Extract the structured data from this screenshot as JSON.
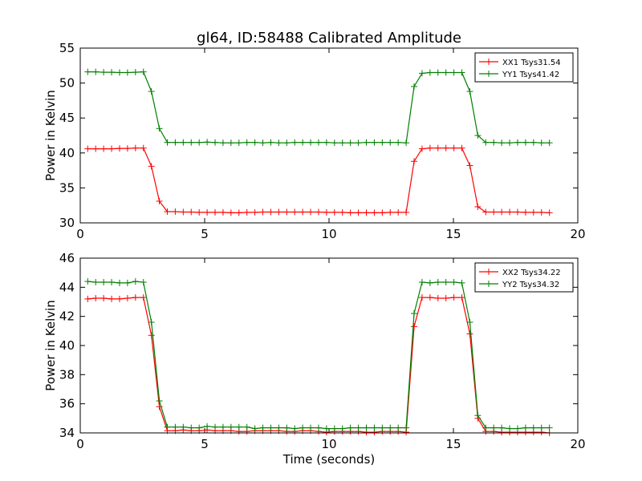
{
  "figure": {
    "title": "gl64, ID:58488 Calibrated Amplitude",
    "xlabel": "Time (seconds)",
    "ylabel": "Power in Kelvin"
  },
  "chart_data": [
    {
      "type": "line",
      "title": "gl64, ID:58488 Calibrated Amplitude",
      "xlabel": "",
      "ylabel": "Power in Kelvin",
      "xlim": [
        0,
        20
      ],
      "ylim": [
        30,
        55
      ],
      "xticks": [
        "0",
        "5",
        "10",
        "15",
        "20"
      ],
      "yticks": [
        "30",
        "35",
        "40",
        "45",
        "50",
        "55"
      ],
      "grid": false,
      "legend": "top-right",
      "x": [
        0.3,
        0.62,
        0.94,
        1.26,
        1.58,
        1.9,
        2.22,
        2.54,
        2.86,
        3.18,
        3.5,
        3.82,
        4.14,
        4.46,
        4.78,
        5.1,
        5.42,
        5.74,
        6.06,
        6.38,
        6.7,
        7.02,
        7.34,
        7.66,
        7.98,
        8.3,
        8.62,
        8.94,
        9.26,
        9.58,
        9.9,
        10.22,
        10.54,
        10.86,
        11.18,
        11.5,
        11.82,
        12.14,
        12.46,
        12.78,
        13.1,
        13.42,
        13.74,
        14.06,
        14.38,
        14.7,
        15.02,
        15.34,
        15.66,
        15.98,
        16.3,
        16.62,
        16.94,
        17.26,
        17.58,
        17.9,
        18.22,
        18.54,
        18.86
      ],
      "series": [
        {
          "name": "XX1 Tsys31.54",
          "color": "#ff0000",
          "values": [
            40.6,
            40.6,
            40.6,
            40.6,
            40.65,
            40.65,
            40.7,
            40.7,
            38.1,
            33.1,
            31.6,
            31.6,
            31.55,
            31.55,
            31.5,
            31.5,
            31.5,
            31.5,
            31.45,
            31.45,
            31.5,
            31.5,
            31.55,
            31.55,
            31.55,
            31.55,
            31.55,
            31.55,
            31.55,
            31.55,
            31.5,
            31.5,
            31.5,
            31.45,
            31.45,
            31.45,
            31.45,
            31.45,
            31.5,
            31.5,
            31.5,
            38.8,
            40.6,
            40.7,
            40.7,
            40.7,
            40.7,
            40.7,
            38.2,
            32.3,
            31.55,
            31.55,
            31.55,
            31.55,
            31.55,
            31.5,
            31.5,
            31.5,
            31.45
          ]
        },
        {
          "name": "YY1 Tsys41.42",
          "color": "#008000",
          "values": [
            51.6,
            51.6,
            51.55,
            51.55,
            51.5,
            51.5,
            51.55,
            51.6,
            48.8,
            43.5,
            41.5,
            41.5,
            41.5,
            41.5,
            41.5,
            41.55,
            41.5,
            41.45,
            41.45,
            41.45,
            41.5,
            41.5,
            41.45,
            41.5,
            41.45,
            41.45,
            41.5,
            41.5,
            41.5,
            41.5,
            41.5,
            41.45,
            41.45,
            41.45,
            41.45,
            41.5,
            41.5,
            41.5,
            41.5,
            41.5,
            41.45,
            49.5,
            51.4,
            51.5,
            51.5,
            51.5,
            51.5,
            51.5,
            48.8,
            42.5,
            41.5,
            41.5,
            41.45,
            41.45,
            41.5,
            41.5,
            41.5,
            41.45,
            41.45
          ]
        }
      ]
    },
    {
      "type": "line",
      "title": "",
      "xlabel": "Time (seconds)",
      "ylabel": "Power in Kelvin",
      "xlim": [
        0,
        20
      ],
      "ylim": [
        34,
        46
      ],
      "xticks": [
        "0",
        "5",
        "10",
        "15",
        "20"
      ],
      "yticks": [
        "34",
        "36",
        "38",
        "40",
        "42",
        "44",
        "46"
      ],
      "grid": false,
      "legend": "top-right",
      "x": [
        0.3,
        0.62,
        0.94,
        1.26,
        1.58,
        1.9,
        2.22,
        2.54,
        2.86,
        3.18,
        3.5,
        3.82,
        4.14,
        4.46,
        4.78,
        5.1,
        5.42,
        5.74,
        6.06,
        6.38,
        6.7,
        7.02,
        7.34,
        7.66,
        7.98,
        8.3,
        8.62,
        8.94,
        9.26,
        9.58,
        9.9,
        10.22,
        10.54,
        10.86,
        11.18,
        11.5,
        11.82,
        12.14,
        12.46,
        12.78,
        13.1,
        13.42,
        13.74,
        14.06,
        14.38,
        14.7,
        15.02,
        15.34,
        15.66,
        15.98,
        16.3,
        16.62,
        16.94,
        17.26,
        17.58,
        17.9,
        18.22,
        18.54,
        18.86
      ],
      "series": [
        {
          "name": "XX2 Tsys34.22",
          "color": "#ff0000",
          "values": [
            43.2,
            43.25,
            43.25,
            43.2,
            43.2,
            43.25,
            43.3,
            43.3,
            40.7,
            35.8,
            34.15,
            34.15,
            34.2,
            34.15,
            34.15,
            34.2,
            34.15,
            34.15,
            34.15,
            34.1,
            34.1,
            34.15,
            34.15,
            34.15,
            34.15,
            34.1,
            34.1,
            34.15,
            34.15,
            34.1,
            34.05,
            34.1,
            34.1,
            34.1,
            34.1,
            34.05,
            34.05,
            34.1,
            34.1,
            34.1,
            34.05,
            41.3,
            43.3,
            43.3,
            43.25,
            43.25,
            43.3,
            43.3,
            40.8,
            35.0,
            34.1,
            34.1,
            34.05,
            34.05,
            34.05,
            34.05,
            34.05,
            34.05,
            34.0
          ]
        },
        {
          "name": "YY2 Tsys34.32",
          "color": "#008000",
          "values": [
            44.4,
            44.35,
            44.35,
            44.35,
            44.3,
            44.3,
            44.4,
            44.35,
            41.6,
            36.2,
            34.4,
            34.4,
            34.4,
            34.35,
            34.35,
            34.45,
            34.4,
            34.4,
            34.4,
            34.4,
            34.4,
            34.3,
            34.35,
            34.35,
            34.35,
            34.35,
            34.3,
            34.35,
            34.35,
            34.35,
            34.3,
            34.3,
            34.3,
            34.35,
            34.35,
            34.35,
            34.35,
            34.35,
            34.35,
            34.35,
            34.35,
            42.2,
            44.35,
            44.3,
            44.35,
            44.35,
            44.35,
            44.3,
            41.6,
            35.2,
            34.35,
            34.35,
            34.35,
            34.3,
            34.3,
            34.35,
            34.35,
            34.35,
            34.35
          ]
        }
      ]
    }
  ]
}
